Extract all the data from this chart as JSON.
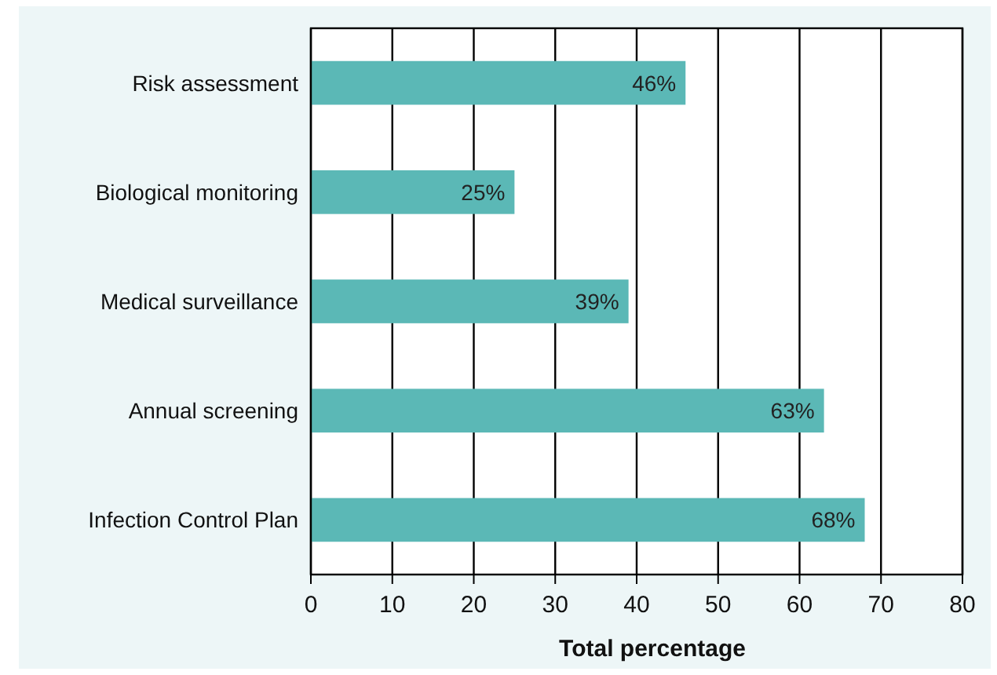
{
  "chart_data": {
    "type": "bar",
    "orientation": "horizontal",
    "xlabel": "Total percentage",
    "categories": [
      "Risk assessment",
      "Biological monitoring",
      "Medical surveillance",
      "Annual screening",
      "Infection Control Plan"
    ],
    "values": [
      46,
      25,
      39,
      63,
      68
    ],
    "value_labels": [
      "46%",
      "25%",
      "39%",
      "63%",
      "68%"
    ],
    "color": "#5bb8b6",
    "xlim": [
      0,
      80
    ],
    "xticks": [
      0,
      10,
      20,
      30,
      40,
      50,
      60,
      70,
      80
    ],
    "grid": "x"
  }
}
